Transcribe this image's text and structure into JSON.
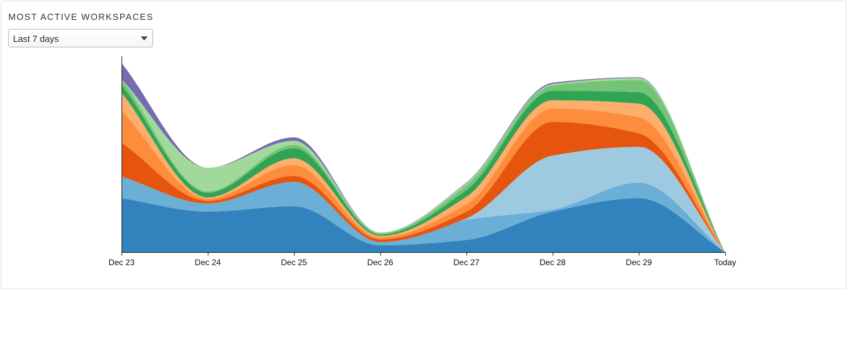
{
  "panel": {
    "title": "MOST ACTIVE WORKSPACES",
    "range": {
      "selected": "Last 7 days",
      "icon": "chevron-down-icon"
    }
  },
  "chart_data": {
    "type": "area",
    "stacked": true,
    "interpolation": "smooth",
    "x": [
      "Dec 23",
      "Dec 24",
      "Dec 25",
      "Dec 26",
      "Dec 27",
      "Dec 28",
      "Dec 29",
      "Today"
    ],
    "ylim": [
      0,
      290
    ],
    "grid": false,
    "legend": "none",
    "series": [
      {
        "color": "#3182bd",
        "values": [
          80,
          60,
          68,
          10,
          18,
          60,
          80,
          0
        ]
      },
      {
        "color": "#6baed6",
        "values": [
          32,
          12,
          36,
          5,
          30,
          3,
          23,
          0
        ]
      },
      {
        "color": "#9ecae1",
        "values": [
          0,
          0,
          0,
          0,
          2,
          80,
          53,
          0
        ]
      },
      {
        "color": "#e6550d",
        "values": [
          50,
          4,
          9,
          4,
          10,
          50,
          20,
          0
        ]
      },
      {
        "color": "#fd8d3c",
        "values": [
          48,
          3,
          16,
          3,
          11,
          20,
          24,
          0
        ]
      },
      {
        "color": "#fdae6b",
        "values": [
          26,
          2,
          10,
          2,
          11,
          12,
          20,
          0
        ]
      },
      {
        "color": "#31a354",
        "values": [
          12,
          7,
          15,
          2,
          10,
          14,
          17,
          0
        ]
      },
      {
        "color": "#74c476",
        "values": [
          8,
          2,
          5,
          2,
          7,
          8,
          18,
          0
        ]
      },
      {
        "color": "#a1d99b",
        "values": [
          0,
          35,
          6,
          1,
          3,
          2,
          3,
          0
        ]
      },
      {
        "color": "#756bb1",
        "values": [
          24,
          0,
          5,
          0,
          1,
          2,
          1,
          0
        ]
      }
    ]
  }
}
